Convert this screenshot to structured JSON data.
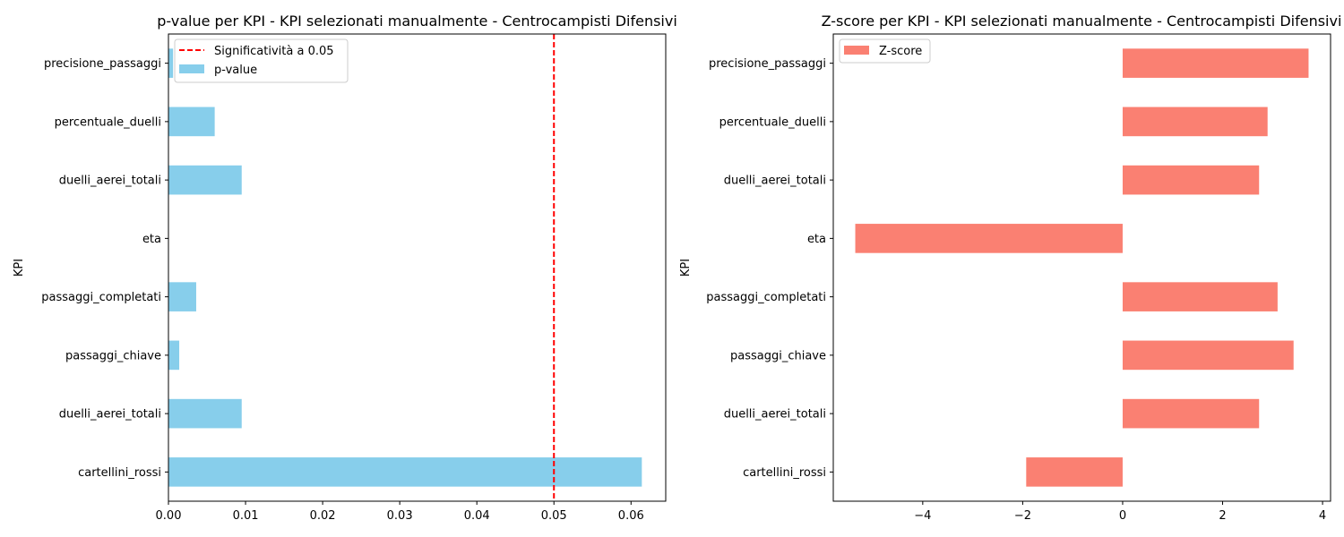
{
  "chart_data": [
    {
      "type": "bar",
      "orientation": "horizontal",
      "title": "p-value per KPI - KPI selezionati manualmente - Centrocampisti Difensivi",
      "xlabel": "",
      "ylabel": "KPI",
      "categories": [
        "precisione_passaggi",
        "percentuale_duelli",
        "duelli_aerei_totali",
        "eta",
        "passaggi_completati",
        "passaggi_chiave",
        "duelli_aerei_totali",
        "cartellini_rossi"
      ],
      "series": [
        {
          "name": "p-value",
          "color": "#87ceeb",
          "values": [
            0.0006,
            0.006,
            0.0095,
            1e-07,
            0.0036,
            0.0014,
            0.0095,
            0.0614
          ]
        }
      ],
      "reference_line": {
        "name": "Significatività a 0.05",
        "x": 0.05,
        "color": "#ff0000",
        "style": "dashed"
      },
      "xlim": [
        0,
        0.0645
      ],
      "xticks": [
        "0.00",
        "0.01",
        "0.02",
        "0.03",
        "0.04",
        "0.05",
        "0.06"
      ],
      "xtick_values": [
        0,
        0.01,
        0.02,
        0.03,
        0.04,
        0.05,
        0.06
      ],
      "grid": false,
      "legend": "top-left"
    },
    {
      "type": "bar",
      "orientation": "horizontal",
      "title": "Z-score per KPI - KPI selezionati manualmente - Centrocampisti Difensivi",
      "xlabel": "",
      "ylabel": "KPI",
      "categories": [
        "precisione_passaggi",
        "percentuale_duelli",
        "duelli_aerei_totali",
        "eta",
        "passaggi_completati",
        "passaggi_chiave",
        "duelli_aerei_totali",
        "cartellini_rossi"
      ],
      "series": [
        {
          "name": "Z-score",
          "color": "#fa8072",
          "values": [
            3.72,
            2.9,
            2.73,
            -5.35,
            3.1,
            3.42,
            2.73,
            -1.93
          ]
        }
      ],
      "xlim": [
        -5.79,
        4.16
      ],
      "xticks": [
        "−4",
        "−2",
        "0",
        "2",
        "4"
      ],
      "xtick_values": [
        -4,
        -2,
        0,
        2,
        4
      ],
      "grid": false,
      "legend": "top-left"
    }
  ]
}
